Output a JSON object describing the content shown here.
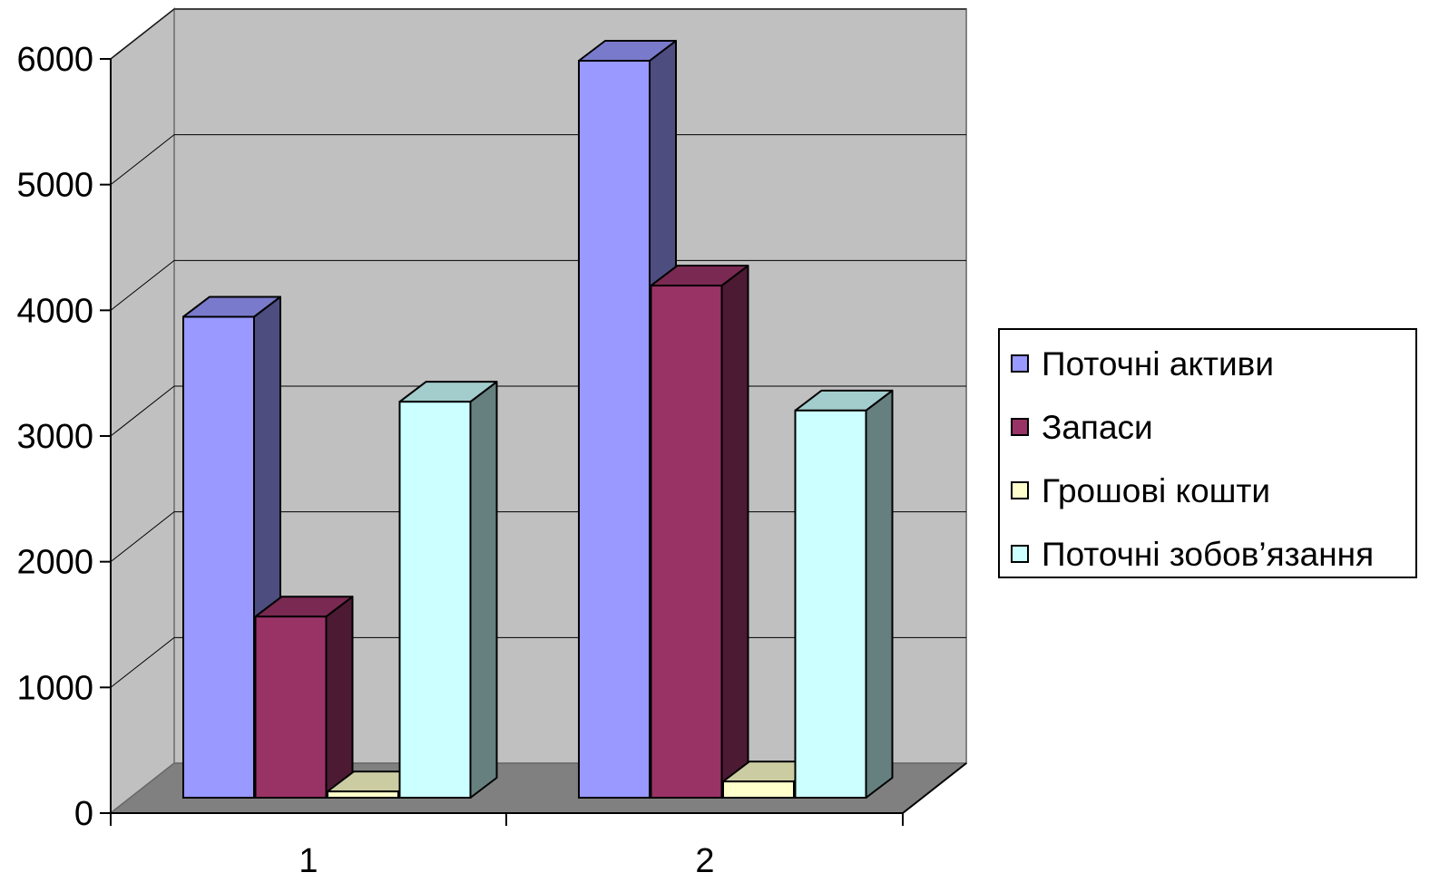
{
  "chart_data": {
    "type": "bar",
    "categories": [
      "1",
      "2"
    ],
    "series": [
      {
        "name": "Поточні активи",
        "values": [
          3850,
          5900
        ],
        "color": "#9999FF"
      },
      {
        "name": "Запаси",
        "values": [
          1450,
          4100
        ],
        "color": "#993366"
      },
      {
        "name": "Грошові кошти",
        "values": [
          50,
          130
        ],
        "color": "#FFFFCC"
      },
      {
        "name": "Поточні зобов’язання",
        "values": [
          3170,
          3100
        ],
        "color": "#CCFFFF"
      }
    ],
    "ylim": [
      0,
      6000
    ],
    "yticks": [
      "0",
      "1000",
      "2000",
      "3000",
      "4000",
      "5000",
      "6000"
    ],
    "grid": true,
    "legend": "right",
    "style": "3d-clustered-column",
    "colors": {
      "wall": "#C0C0C0",
      "floor": "#808080"
    }
  }
}
